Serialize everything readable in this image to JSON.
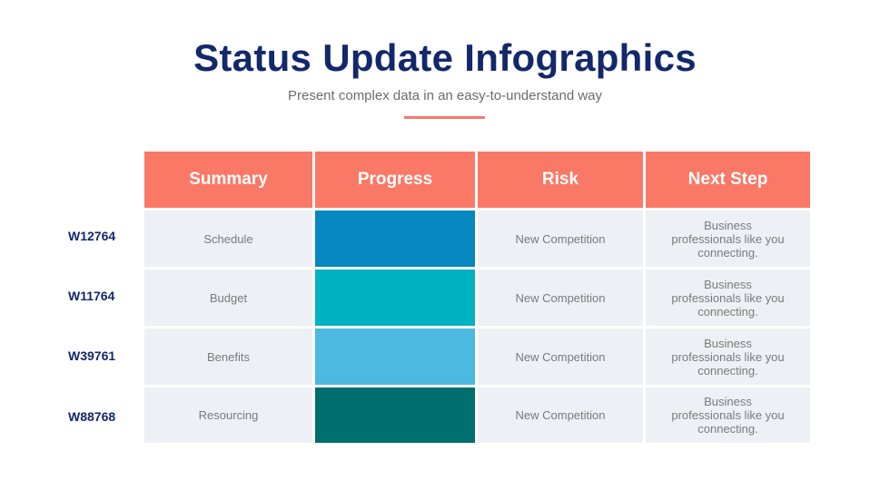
{
  "title": "Status Update Infographics",
  "subtitle": "Present complex data in an easy-to-understand way",
  "accent": "#fa7866",
  "headers": [
    "Summary",
    "Progress",
    "Risk",
    "Next Step"
  ],
  "rows": [
    {
      "id": "W12764",
      "summary": "Schedule",
      "progress_color": "#0687bf",
      "risk": "New Competition",
      "next_step": "Business professionals like you connecting."
    },
    {
      "id": "W11764",
      "summary": "Budget",
      "progress_color": "#00b2c2",
      "risk": "New Competition",
      "next_step": "Business professionals like you connecting."
    },
    {
      "id": "W39761",
      "summary": "Benefits",
      "progress_color": "#4bb9e0",
      "risk": "New Competition",
      "next_step": "Business professionals like you connecting."
    },
    {
      "id": "W88768",
      "summary": "Resourcing",
      "progress_color": "#006f6f",
      "risk": "New Competition",
      "next_step": "Business professionals like you connecting."
    }
  ]
}
